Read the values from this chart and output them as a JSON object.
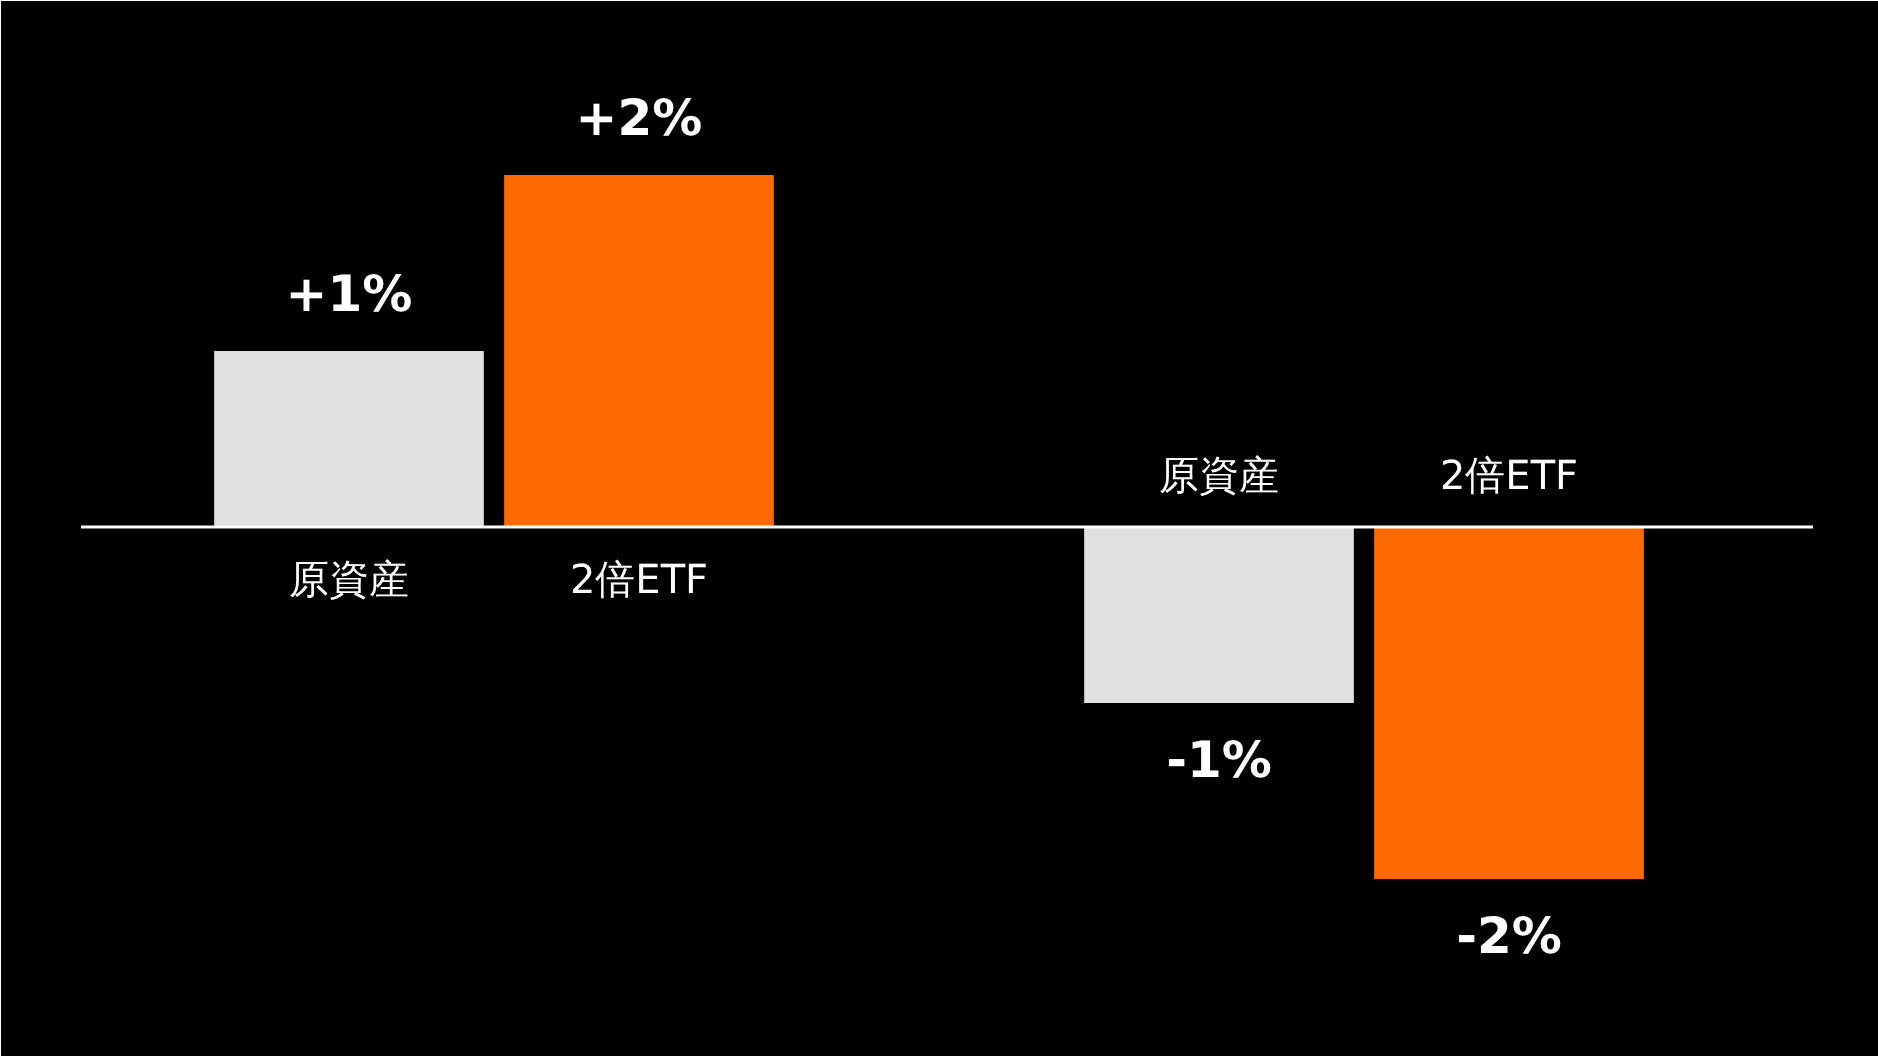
{
  "chart_data": {
    "type": "bar",
    "categories": [
      "原資産",
      "2倍ETF",
      null,
      "原資産",
      "2倍ETF"
    ],
    "values": [
      1,
      2,
      null,
      -1,
      -2
    ],
    "colors": [
      "#e0e0e0",
      "#ff6a00",
      "#000000",
      "#e0e0e0",
      "#ff6a00"
    ],
    "value_labels": [
      "+1%",
      "+2%",
      null,
      "-1%",
      "-2%"
    ]
  }
}
